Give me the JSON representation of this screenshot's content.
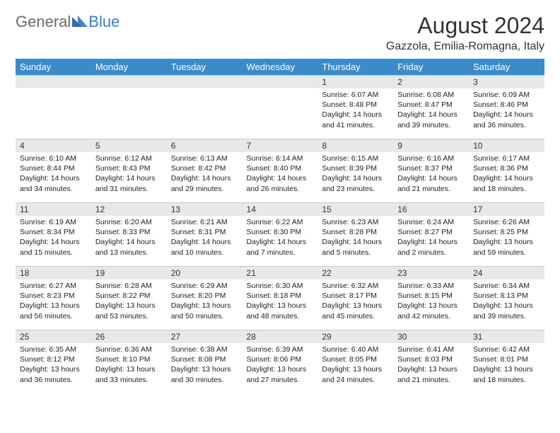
{
  "logo": {
    "text1": "General",
    "text2": "Blue",
    "icon_color": "#2f6fb0"
  },
  "title": "August 2024",
  "location": "Gazzola, Emilia-Romagna, Italy",
  "day_headers": [
    "Sunday",
    "Monday",
    "Tuesday",
    "Wednesday",
    "Thursday",
    "Friday",
    "Saturday"
  ],
  "colors": {
    "header_bg": "#3b8bc9",
    "header_text": "#ffffff",
    "daynum_bg": "#e8e8e8",
    "border": "#c8c8c8"
  },
  "weeks": [
    [
      null,
      null,
      null,
      null,
      {
        "n": "1",
        "sr": "Sunrise: 6:07 AM",
        "ss": "Sunset: 8:48 PM",
        "dl": "Daylight: 14 hours and 41 minutes."
      },
      {
        "n": "2",
        "sr": "Sunrise: 6:08 AM",
        "ss": "Sunset: 8:47 PM",
        "dl": "Daylight: 14 hours and 39 minutes."
      },
      {
        "n": "3",
        "sr": "Sunrise: 6:09 AM",
        "ss": "Sunset: 8:46 PM",
        "dl": "Daylight: 14 hours and 36 minutes."
      }
    ],
    [
      {
        "n": "4",
        "sr": "Sunrise: 6:10 AM",
        "ss": "Sunset: 8:44 PM",
        "dl": "Daylight: 14 hours and 34 minutes."
      },
      {
        "n": "5",
        "sr": "Sunrise: 6:12 AM",
        "ss": "Sunset: 8:43 PM",
        "dl": "Daylight: 14 hours and 31 minutes."
      },
      {
        "n": "6",
        "sr": "Sunrise: 6:13 AM",
        "ss": "Sunset: 8:42 PM",
        "dl": "Daylight: 14 hours and 29 minutes."
      },
      {
        "n": "7",
        "sr": "Sunrise: 6:14 AM",
        "ss": "Sunset: 8:40 PM",
        "dl": "Daylight: 14 hours and 26 minutes."
      },
      {
        "n": "8",
        "sr": "Sunrise: 6:15 AM",
        "ss": "Sunset: 8:39 PM",
        "dl": "Daylight: 14 hours and 23 minutes."
      },
      {
        "n": "9",
        "sr": "Sunrise: 6:16 AM",
        "ss": "Sunset: 8:37 PM",
        "dl": "Daylight: 14 hours and 21 minutes."
      },
      {
        "n": "10",
        "sr": "Sunrise: 6:17 AM",
        "ss": "Sunset: 8:36 PM",
        "dl": "Daylight: 14 hours and 18 minutes."
      }
    ],
    [
      {
        "n": "11",
        "sr": "Sunrise: 6:19 AM",
        "ss": "Sunset: 8:34 PM",
        "dl": "Daylight: 14 hours and 15 minutes."
      },
      {
        "n": "12",
        "sr": "Sunrise: 6:20 AM",
        "ss": "Sunset: 8:33 PM",
        "dl": "Daylight: 14 hours and 13 minutes."
      },
      {
        "n": "13",
        "sr": "Sunrise: 6:21 AM",
        "ss": "Sunset: 8:31 PM",
        "dl": "Daylight: 14 hours and 10 minutes."
      },
      {
        "n": "14",
        "sr": "Sunrise: 6:22 AM",
        "ss": "Sunset: 8:30 PM",
        "dl": "Daylight: 14 hours and 7 minutes."
      },
      {
        "n": "15",
        "sr": "Sunrise: 6:23 AM",
        "ss": "Sunset: 8:28 PM",
        "dl": "Daylight: 14 hours and 5 minutes."
      },
      {
        "n": "16",
        "sr": "Sunrise: 6:24 AM",
        "ss": "Sunset: 8:27 PM",
        "dl": "Daylight: 14 hours and 2 minutes."
      },
      {
        "n": "17",
        "sr": "Sunrise: 6:26 AM",
        "ss": "Sunset: 8:25 PM",
        "dl": "Daylight: 13 hours and 59 minutes."
      }
    ],
    [
      {
        "n": "18",
        "sr": "Sunrise: 6:27 AM",
        "ss": "Sunset: 8:23 PM",
        "dl": "Daylight: 13 hours and 56 minutes."
      },
      {
        "n": "19",
        "sr": "Sunrise: 6:28 AM",
        "ss": "Sunset: 8:22 PM",
        "dl": "Daylight: 13 hours and 53 minutes."
      },
      {
        "n": "20",
        "sr": "Sunrise: 6:29 AM",
        "ss": "Sunset: 8:20 PM",
        "dl": "Daylight: 13 hours and 50 minutes."
      },
      {
        "n": "21",
        "sr": "Sunrise: 6:30 AM",
        "ss": "Sunset: 8:18 PM",
        "dl": "Daylight: 13 hours and 48 minutes."
      },
      {
        "n": "22",
        "sr": "Sunrise: 6:32 AM",
        "ss": "Sunset: 8:17 PM",
        "dl": "Daylight: 13 hours and 45 minutes."
      },
      {
        "n": "23",
        "sr": "Sunrise: 6:33 AM",
        "ss": "Sunset: 8:15 PM",
        "dl": "Daylight: 13 hours and 42 minutes."
      },
      {
        "n": "24",
        "sr": "Sunrise: 6:34 AM",
        "ss": "Sunset: 8:13 PM",
        "dl": "Daylight: 13 hours and 39 minutes."
      }
    ],
    [
      {
        "n": "25",
        "sr": "Sunrise: 6:35 AM",
        "ss": "Sunset: 8:12 PM",
        "dl": "Daylight: 13 hours and 36 minutes."
      },
      {
        "n": "26",
        "sr": "Sunrise: 6:36 AM",
        "ss": "Sunset: 8:10 PM",
        "dl": "Daylight: 13 hours and 33 minutes."
      },
      {
        "n": "27",
        "sr": "Sunrise: 6:38 AM",
        "ss": "Sunset: 8:08 PM",
        "dl": "Daylight: 13 hours and 30 minutes."
      },
      {
        "n": "28",
        "sr": "Sunrise: 6:39 AM",
        "ss": "Sunset: 8:06 PM",
        "dl": "Daylight: 13 hours and 27 minutes."
      },
      {
        "n": "29",
        "sr": "Sunrise: 6:40 AM",
        "ss": "Sunset: 8:05 PM",
        "dl": "Daylight: 13 hours and 24 minutes."
      },
      {
        "n": "30",
        "sr": "Sunrise: 6:41 AM",
        "ss": "Sunset: 8:03 PM",
        "dl": "Daylight: 13 hours and 21 minutes."
      },
      {
        "n": "31",
        "sr": "Sunrise: 6:42 AM",
        "ss": "Sunset: 8:01 PM",
        "dl": "Daylight: 13 hours and 18 minutes."
      }
    ]
  ]
}
